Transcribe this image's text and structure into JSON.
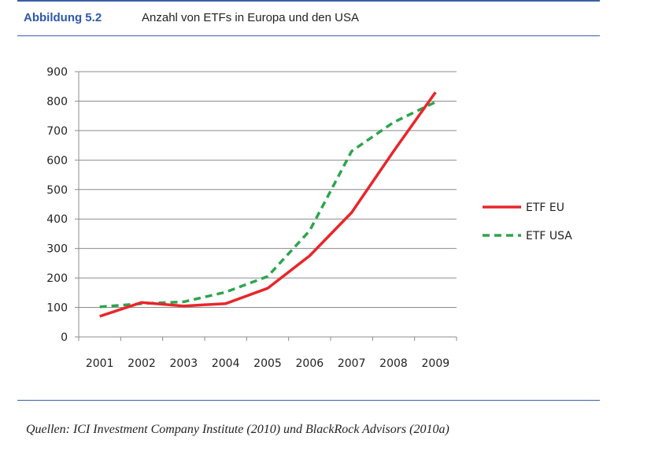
{
  "figure": {
    "number": "Abbildung 5.2",
    "title": "Anzahl von ETFs in Europa und den USA",
    "source": "Quellen: ICI Investment Company Institute (2010) und BlackRock Advisors (2010a)"
  },
  "chart_data": {
    "type": "line",
    "title": "Anzahl von ETFs in Europa und den USA",
    "xlabel": "",
    "ylabel": "",
    "x": [
      "2001",
      "2002",
      "2003",
      "2004",
      "2005",
      "2006",
      "2007",
      "2008",
      "2009"
    ],
    "ylim": [
      0,
      900
    ],
    "yticks": [
      0,
      100,
      200,
      300,
      400,
      500,
      600,
      700,
      800,
      900
    ],
    "grid": true,
    "legend_position": "right",
    "series": [
      {
        "name": "ETF EU",
        "color": "#e8262b",
        "style": "solid",
        "values": [
          70,
          117,
          105,
          113,
          165,
          275,
          422,
          630,
          830
        ]
      },
      {
        "name": "ETF USA",
        "color": "#2ea44f",
        "style": "dashed",
        "values": [
          102,
          113,
          119,
          152,
          205,
          360,
          630,
          728,
          797
        ]
      }
    ]
  }
}
